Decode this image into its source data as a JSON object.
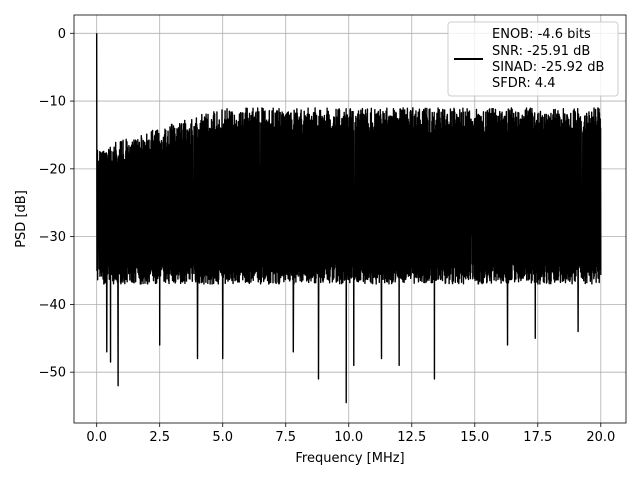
{
  "chart_data": {
    "type": "line",
    "title": "",
    "xlabel": "Frequency [MHz]",
    "ylabel": "PSD [dB]",
    "xlim": [
      -0.9,
      21.0
    ],
    "ylim": [
      -57.5,
      2.7
    ],
    "xticks": [
      0.0,
      2.5,
      5.0,
      7.5,
      10.0,
      12.5,
      15.0,
      17.5,
      20.0
    ],
    "xtick_labels": [
      "0.0",
      "2.5",
      "5.0",
      "7.5",
      "10.0",
      "12.5",
      "15.0",
      "17.5",
      "20.0"
    ],
    "yticks": [
      0,
      -10,
      -20,
      -30,
      -40,
      -50
    ],
    "ytick_labels": [
      "0",
      "−10",
      "−20",
      "−30",
      "−40",
      "−50"
    ],
    "grid": true,
    "legend_position": "top-right",
    "legend_lines": [
      "ENOB: -4.6 bits",
      "SNR: -25.91 dB",
      "SINAD: -25.92 dB",
      "SFDR: 4.4"
    ],
    "series": [
      {
        "color": "#000000",
        "description": "noise-like PSD from 0 to 20 MHz; peak 0 dB at 0 MHz; upper envelope ~-16 dB near DC rising to ~-10 dB above 5 MHz; lower envelope ~-35 to -40 dB with sparse dips to about -55 dB",
        "x_range": [
          0.0,
          20.0
        ],
        "peak": {
          "x": 0.0,
          "y": 0.0
        },
        "notable_dips": [
          {
            "x": 0.4,
            "y": -47
          },
          {
            "x": 0.55,
            "y": -48.5
          },
          {
            "x": 0.85,
            "y": -52
          },
          {
            "x": 2.5,
            "y": -46
          },
          {
            "x": 4.0,
            "y": -48
          },
          {
            "x": 5.0,
            "y": -48
          },
          {
            "x": 7.8,
            "y": -47
          },
          {
            "x": 8.8,
            "y": -51
          },
          {
            "x": 9.9,
            "y": -54.5
          },
          {
            "x": 10.2,
            "y": -49
          },
          {
            "x": 11.3,
            "y": -48
          },
          {
            "x": 12.0,
            "y": -49
          },
          {
            "x": 13.4,
            "y": -51
          },
          {
            "x": 16.3,
            "y": -46
          },
          {
            "x": 17.4,
            "y": -45
          },
          {
            "x": 19.1,
            "y": -44
          }
        ]
      }
    ]
  }
}
